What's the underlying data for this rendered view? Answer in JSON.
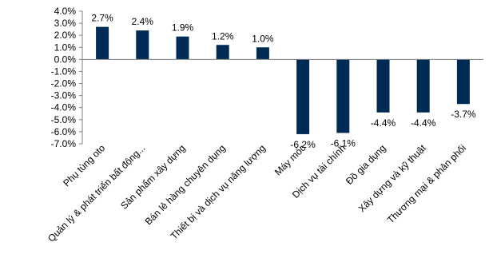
{
  "chart_data": {
    "type": "bar",
    "categories": [
      "Phụ tùng oto",
      "Quản lý & phát triển bất động...",
      "Sản phẩm xây dựng",
      "Bán lẻ hàng chuyên dụng",
      "Thiết bị và dịch vụ năng lượng",
      "Máy móc",
      "Dịch vụ tài chính",
      "Đồ gia dụng",
      "Xây dựng và kỹ thuật",
      "Thương mại & phân phối"
    ],
    "values": [
      2.7,
      2.4,
      1.9,
      1.2,
      1.0,
      -6.2,
      -6.1,
      -4.4,
      -4.4,
      -3.7
    ],
    "data_labels": [
      "2.7%",
      "2.4%",
      "1.9%",
      "1.2%",
      "1.0%",
      "-6.2%",
      "-6.1%",
      "-4.4%",
      "-4.4%",
      "-3.7%"
    ],
    "ylim": [
      -7.0,
      4.0
    ],
    "y_ticks": [
      "4.0%",
      "3.0%",
      "2.0%",
      "1.0%",
      "0.0%",
      "-1.0%",
      "-2.0%",
      "-3.0%",
      "-4.0%",
      "-5.0%",
      "-6.0%",
      "-7.0%"
    ],
    "y_tick_values": [
      4,
      3,
      2,
      1,
      0,
      -1,
      -2,
      -3,
      -4,
      -5,
      -6,
      -7
    ],
    "bar_color": "#002B55",
    "axis_color": "#808080",
    "grid": false,
    "legend": "none"
  }
}
